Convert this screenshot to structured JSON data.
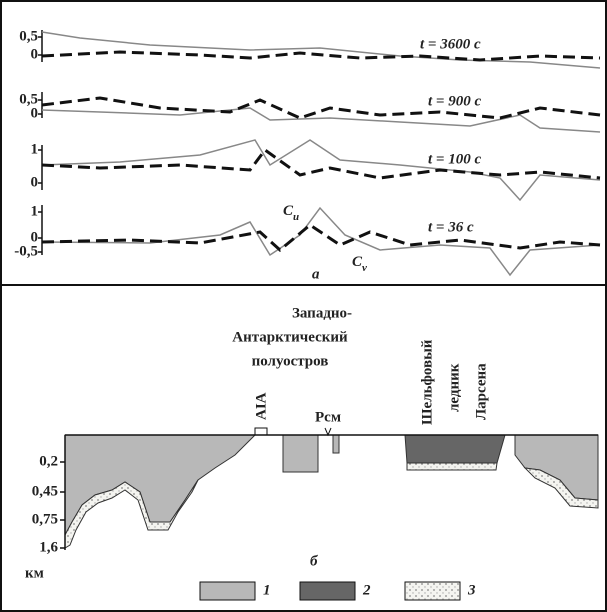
{
  "top": {
    "panels": [
      {
        "label": "t = 3600 с",
        "ticks": [
          "0,5",
          "0"
        ]
      },
      {
        "label": "t = 900 с",
        "ticks": [
          "0,5",
          "0"
        ]
      },
      {
        "label": "t = 100 с",
        "ticks": [
          "1",
          "0"
        ]
      },
      {
        "label": "t = 36 с",
        "ticks": [
          "1",
          "0",
          "-0,5"
        ]
      }
    ],
    "cu": {
      "letter": "C",
      "sub": "u"
    },
    "cv": {
      "letter": "C",
      "sub": "v"
    },
    "panel_letter": "а"
  },
  "bottom": {
    "peninsula": [
      "Западно-",
      "Антарктический",
      "полуостров"
    ],
    "station1": "AIA",
    "station2": "Рсм",
    "shelf": [
      "Шельфовый",
      "ледник",
      "Ларсена"
    ],
    "depth_ticks": [
      "0,2",
      "0,45",
      "0,75",
      "1,6"
    ],
    "depth_unit": "км",
    "panel_letter": "б",
    "legend": [
      "1",
      "2",
      "3"
    ]
  }
}
